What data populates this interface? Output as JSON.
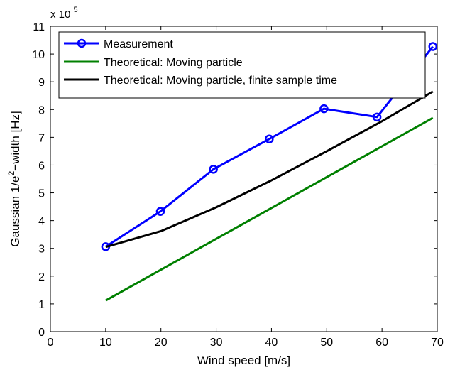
{
  "chart_data": {
    "type": "line",
    "xlabel": "Wind speed [m/s]",
    "ylabel_pre": "Gaussian 1/e",
    "ylabel_sup": "2",
    "ylabel_post": "−width [Hz]",
    "y_multiplier": {
      "base": "x 10",
      "exponent": "5"
    },
    "xlim": [
      0,
      70
    ],
    "ylim": [
      0,
      11
    ],
    "xticks": [
      0,
      10,
      20,
      30,
      40,
      50,
      60,
      70
    ],
    "yticks": [
      0,
      1,
      2,
      3,
      4,
      5,
      6,
      7,
      8,
      9,
      10,
      11
    ],
    "grid": false,
    "legend_position": "top-left",
    "series": [
      {
        "name": "Measurement",
        "color": "#0000ff",
        "marker": "circle",
        "style": "line-marker",
        "x": [
          10,
          19.9,
          29.5,
          39.6,
          49.5,
          59.1,
          69.2
        ],
        "y": [
          3.06,
          4.33,
          5.85,
          6.94,
          8.03,
          7.73,
          10.27
        ]
      },
      {
        "name": "Theoretical: Moving particle",
        "color": "#008000",
        "marker": "none",
        "style": "line",
        "x": [
          10,
          69.2
        ],
        "y": [
          1.12,
          7.7
        ]
      },
      {
        "name": "Theoretical: Moving particle, finite sample time",
        "color": "#000000",
        "marker": "none",
        "style": "line",
        "x": [
          10,
          20,
          30,
          40,
          50,
          60,
          69.2
        ],
        "y": [
          3.05,
          3.62,
          4.48,
          5.45,
          6.5,
          7.58,
          8.65
        ]
      }
    ]
  }
}
